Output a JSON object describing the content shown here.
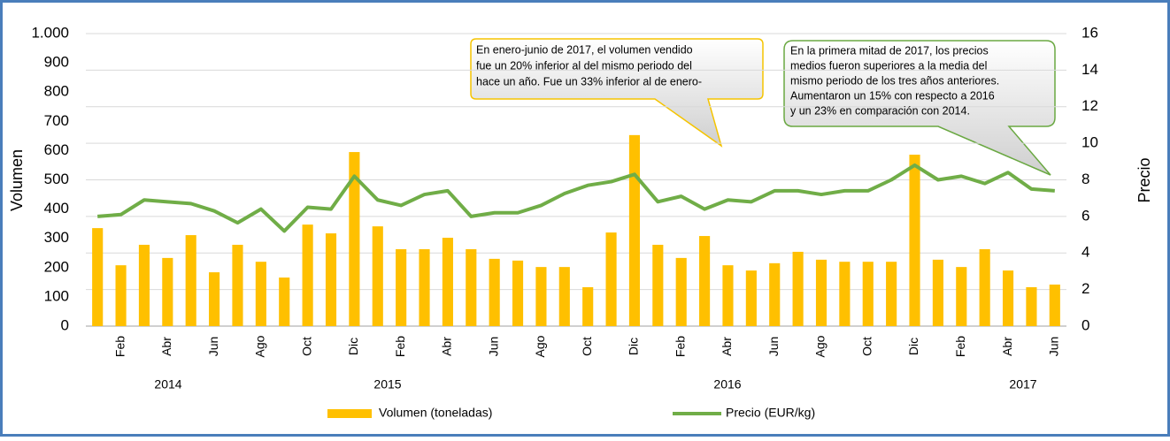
{
  "chart_data": {
    "type": "bar_line",
    "y_label": "Volumen",
    "y2_label": "Precio",
    "categories": [
      null,
      "Feb",
      null,
      "Abr",
      null,
      "Jun",
      null,
      "Ago",
      null,
      "Oct",
      null,
      "Dic",
      null,
      "Feb",
      null,
      "Abr",
      null,
      "Jun",
      null,
      "Ago",
      null,
      "Oct",
      null,
      "Dic",
      null,
      "Feb",
      null,
      "Abr",
      null,
      "Jun",
      null,
      "Ago",
      null,
      "Oct",
      null,
      "Dic",
      null,
      "Feb",
      null,
      "Abr",
      null,
      "Jun"
    ],
    "years": [
      "2014",
      "2015",
      "2016",
      "2017"
    ],
    "series": [
      {
        "name": "Volumen (toneladas)",
        "color": "#ffc000",
        "kind": "bar",
        "values": [
          335,
          208,
          278,
          233,
          311,
          184,
          278,
          220,
          166,
          347,
          317,
          595,
          341,
          263,
          263,
          302,
          263,
          230,
          224,
          202,
          202,
          133,
          320,
          653,
          278,
          233,
          308,
          208,
          190,
          215,
          254,
          227,
          220,
          220,
          220,
          586,
          227,
          202,
          263,
          190,
          133,
          142
        ]
      },
      {
        "name": "Precio (EUR/kg)",
        "color": "#70ad47",
        "kind": "line",
        "axis": "y2",
        "values": [
          6.0,
          6.1,
          6.9,
          6.8,
          6.7,
          6.3,
          5.65,
          6.4,
          5.2,
          6.5,
          6.4,
          8.2,
          6.9,
          6.6,
          7.2,
          7.4,
          6.0,
          6.2,
          6.2,
          6.6,
          7.25,
          7.7,
          7.9,
          8.3,
          6.8,
          7.1,
          6.4,
          6.9,
          6.8,
          7.4,
          7.4,
          7.2,
          7.4,
          7.4,
          8.0,
          8.8,
          8.0,
          8.2,
          7.8,
          8.4,
          7.5,
          7.4
        ]
      }
    ],
    "ylim": [
      0,
      1000
    ],
    "yticks": [
      0,
      100,
      200,
      300,
      400,
      500,
      600,
      700,
      800,
      900,
      {
        "value": 1000,
        "label": "1.000"
      }
    ],
    "y2lim": [
      0,
      16
    ],
    "y2ticks": [
      0,
      2,
      4,
      6,
      8,
      10,
      12,
      14,
      16
    ],
    "grid": true,
    "annotations": [
      [
        "En enero-junio de 2017,  el volumen vendido",
        "fue un 20% inferior al del mismo periodo del",
        "hace un año. Fue un 33% inferior al de enero-"
      ],
      [
        "En la primera mitad de 2017, los precios",
        "medios fueron superiores a la media del",
        "mismo periodo de los tres años anteriores.",
        "Aumentaron un 15% con respecto a 2016",
        "y un 23% en comparación con 2014."
      ]
    ]
  }
}
